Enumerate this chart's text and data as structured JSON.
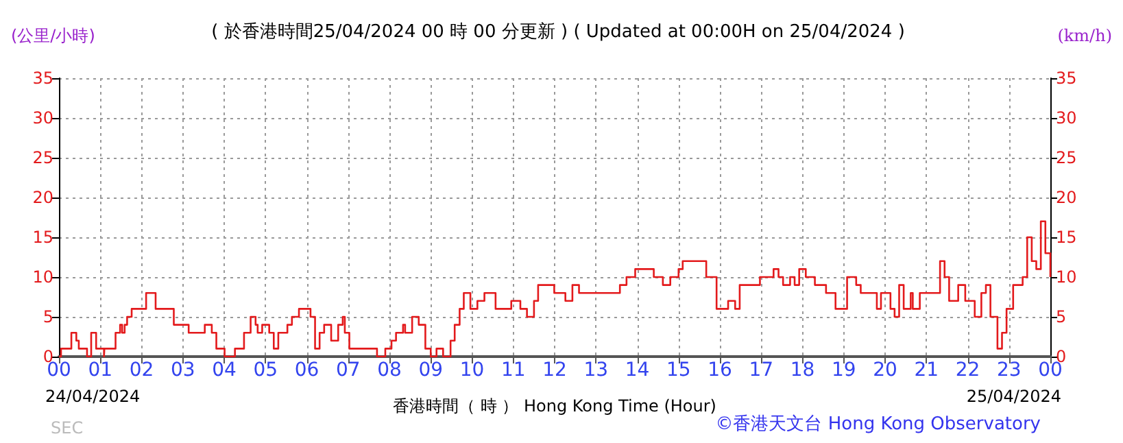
{
  "chart_data": {
    "type": "step",
    "title": "( 於香港時間25/04/2024 00 時 00 分更新 ) ( Updated at 00:00H on 25/04/2024 )",
    "xlabel": "香港時間（ 時 ） Hong Kong Time (Hour)",
    "ylabel": "(公里/小時)",
    "y2label": "(km/h)",
    "annotations": [
      "24/04/2024",
      "25/04/2024",
      "SEC",
      "©香港天文台 Hong Kong Observatory"
    ],
    "x": [
      0,
      0.05,
      0.3,
      0.42,
      0.48,
      0.68,
      0.78,
      0.9,
      1.09,
      1.1,
      1.37,
      1.48,
      1.53,
      1.59,
      1.65,
      1.76,
      2.11,
      2.34,
      2.78,
      3.14,
      3.53,
      3.7,
      3.81,
      4.01,
      4.26,
      4.48,
      4.64,
      4.76,
      4.81,
      4.92,
      5.09,
      5.2,
      5.31,
      5.53,
      5.64,
      5.81,
      6.09,
      6.2,
      6.31,
      6.42,
      6.59,
      6.76,
      6.87,
      6.92,
      7.03,
      7.59,
      7.7,
      7.9,
      8.05,
      8.16,
      8.33,
      8.38,
      8.55,
      8.71,
      8.87,
      9.0,
      9.14,
      9.3,
      9.48,
      9.58,
      9.7,
      9.8,
      9.96,
      10.13,
      10.3,
      10.57,
      10.95,
      11.17,
      11.33,
      11.5,
      11.6,
      11.99,
      12.26,
      12.43,
      12.59,
      13.58,
      13.74,
      13.95,
      14.4,
      14.62,
      14.8,
      15.0,
      15.1,
      15.67,
      15.92,
      16.2,
      16.37,
      16.48,
      16.97,
      17.3,
      17.42,
      17.53,
      17.7,
      17.81,
      17.92,
      18.08,
      18.3,
      18.57,
      18.8,
      19.08,
      19.3,
      19.41,
      19.8,
      19.9,
      20.13,
      20.23,
      20.34,
      20.45,
      20.62,
      20.67,
      20.84,
      21.22,
      21.33,
      21.44,
      21.55,
      21.77,
      21.94,
      22.17,
      22.33,
      22.44,
      22.55,
      22.72,
      22.83,
      22.94,
      23.1,
      23.33,
      23.44,
      23.55,
      23.66,
      23.77,
      23.88,
      24
    ],
    "series": [
      {
        "color": "#e31a1c",
        "values": [
          0,
          1,
          3,
          2,
          1,
          0,
          3,
          1,
          0,
          1,
          3,
          4,
          3,
          4,
          5,
          6,
          8,
          6,
          4,
          3,
          4,
          3,
          1,
          0,
          1,
          3,
          5,
          4,
          3,
          4,
          3,
          1,
          3,
          4,
          5,
          6,
          5,
          1,
          3,
          4,
          2,
          4,
          5,
          3,
          1,
          1,
          0,
          1,
          2,
          3,
          4,
          3,
          5,
          4,
          1,
          0,
          1,
          0,
          2,
          4,
          6,
          8,
          6,
          7,
          8,
          6,
          7,
          6,
          5,
          7,
          9,
          8,
          7,
          9,
          8,
          9,
          10,
          11,
          10,
          9,
          10,
          11,
          12,
          10,
          6,
          7,
          6,
          9,
          10,
          11,
          10,
          9,
          10,
          9,
          11,
          10,
          9,
          8,
          6,
          10,
          9,
          8,
          6,
          8,
          6,
          5,
          9,
          6,
          8,
          6,
          8,
          8,
          12,
          10,
          7,
          9,
          7,
          5,
          8,
          9,
          5,
          1,
          3,
          6,
          9,
          10,
          15,
          12,
          11,
          17,
          13,
          10
        ]
      }
    ],
    "xlim": [
      0,
      24
    ],
    "xticks": [
      {
        "value": 0,
        "label": "00"
      },
      {
        "value": 1,
        "label": "01"
      },
      {
        "value": 2,
        "label": "02"
      },
      {
        "value": 3,
        "label": "03"
      },
      {
        "value": 4,
        "label": "04"
      },
      {
        "value": 5,
        "label": "05"
      },
      {
        "value": 6,
        "label": "06"
      },
      {
        "value": 7,
        "label": "07"
      },
      {
        "value": 8,
        "label": "08"
      },
      {
        "value": 9,
        "label": "09"
      },
      {
        "value": 10,
        "label": "10"
      },
      {
        "value": 11,
        "label": "11"
      },
      {
        "value": 12,
        "label": "12"
      },
      {
        "value": 13,
        "label": "13"
      },
      {
        "value": 14,
        "label": "14"
      },
      {
        "value": 15,
        "label": "15"
      },
      {
        "value": 16,
        "label": "16"
      },
      {
        "value": 17,
        "label": "17"
      },
      {
        "value": 18,
        "label": "18"
      },
      {
        "value": 19,
        "label": "19"
      },
      {
        "value": 20,
        "label": "20"
      },
      {
        "value": 21,
        "label": "21"
      },
      {
        "value": 22,
        "label": "22"
      },
      {
        "value": 23,
        "label": "23"
      },
      {
        "value": 24,
        "label": "00"
      }
    ],
    "ylim": [
      0,
      35
    ],
    "yticks": [
      0,
      5,
      10,
      15,
      20,
      25,
      30,
      35
    ],
    "y2lim": [
      0,
      35
    ],
    "y2ticks": [
      0,
      5,
      10,
      15,
      20,
      25,
      30,
      35
    ],
    "grid": true,
    "marker": "none",
    "line_style": "solid"
  }
}
